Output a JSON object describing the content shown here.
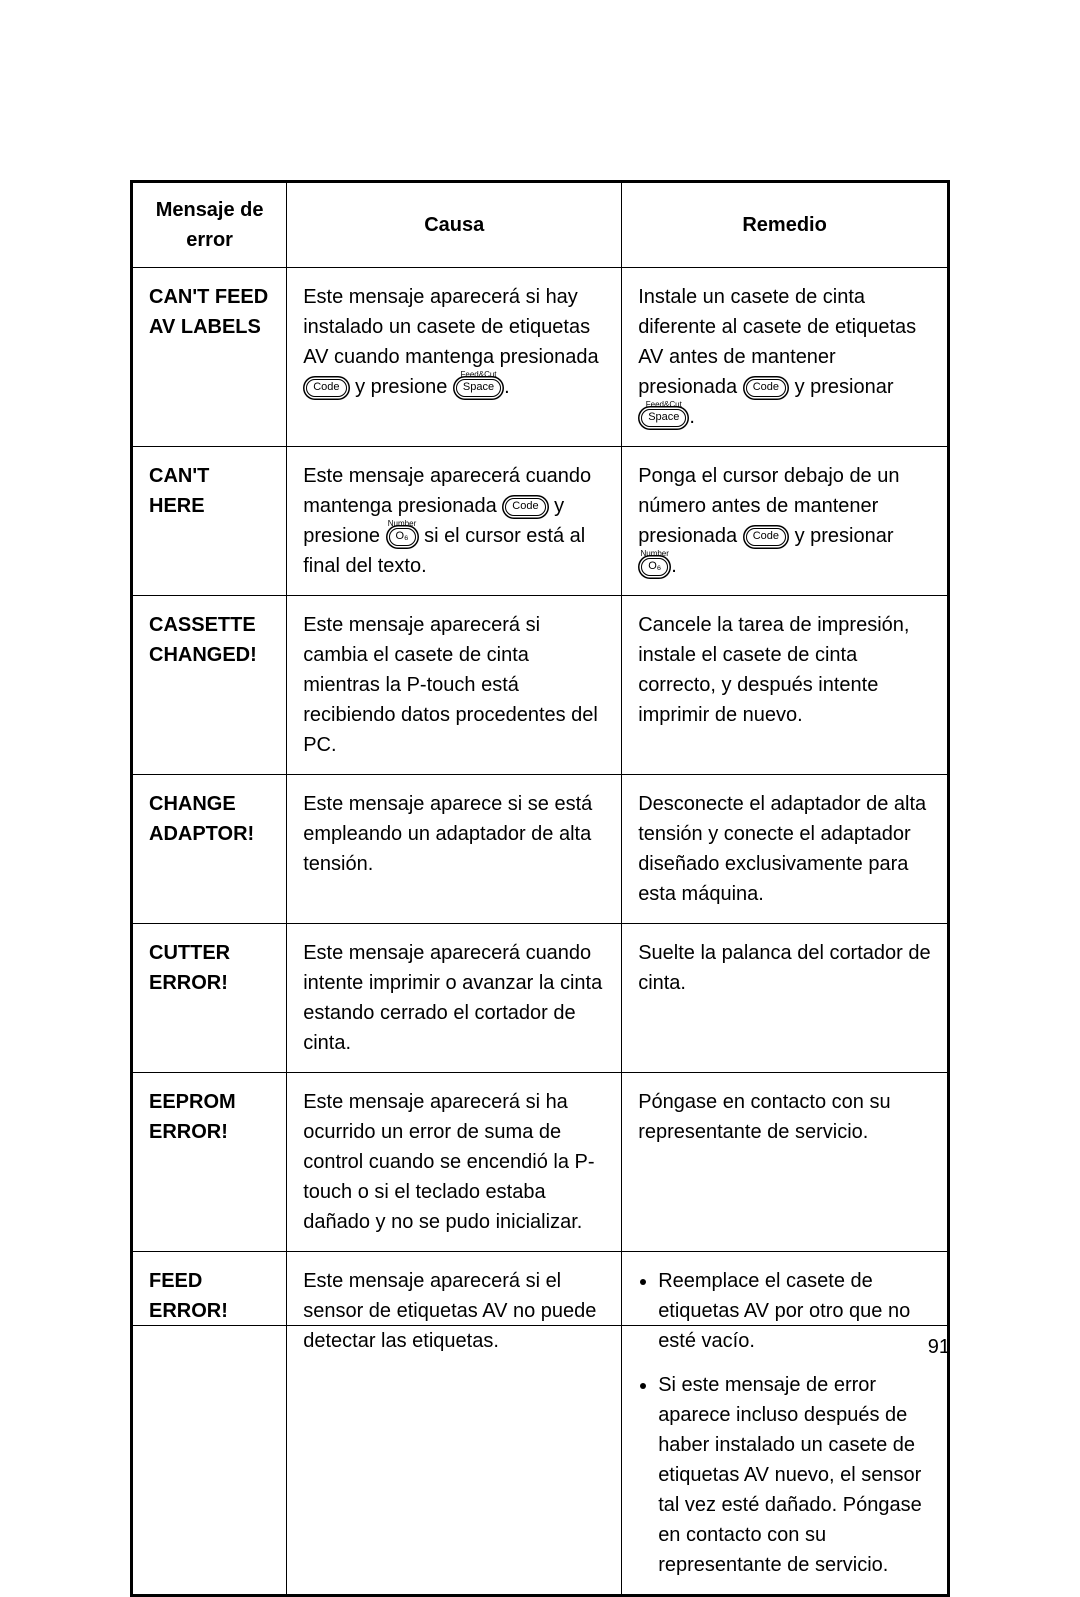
{
  "page_number": "91",
  "table": {
    "headers": {
      "error": "Mensaje de error",
      "cause": "Causa",
      "remedy": "Remedio"
    },
    "rows": [
      {
        "error": "CAN'T FEED AV LABELS",
        "cause_pre": "Este mensaje aparecerá si hay instalado un casete de etiquetas AV cuando mantenga presionada ",
        "cause_key1": "Code",
        "cause_mid": " y presione ",
        "cause_key2": "Space",
        "cause_key2_sup": "Feed&Cut",
        "cause_post": ".",
        "remedy_pre": "Instale un casete de cinta diferente al casete de etiquetas AV antes de mantener presionada ",
        "remedy_key1": "Code",
        "remedy_mid": " y presionar ",
        "remedy_key2": "Space",
        "remedy_key2_sup": "Feed&Cut",
        "remedy_post": "."
      },
      {
        "error": "CAN'T HERE",
        "cause_pre": "Este mensaje aparecerá cuando mantenga presionada ",
        "cause_key1": "Code",
        "cause_mid": " y presione ",
        "cause_key2": "O₆",
        "cause_key2_sup": "Number",
        "cause_post": " si el cursor está al final del texto.",
        "remedy_pre": "Ponga el cursor debajo de un número antes de mantener presionada ",
        "remedy_key1": "Code",
        "remedy_mid": " y presionar ",
        "remedy_key2": "O₆",
        "remedy_key2_sup": "Number",
        "remedy_post": "."
      },
      {
        "error": "CASSETTE CHANGED!",
        "cause": "Este mensaje aparecerá si cambia el casete de cinta mientras la P-touch está recibiendo datos procedentes del PC.",
        "remedy": "Cancele la tarea de impresión, instale el casete de cinta correcto, y después intente imprimir de nuevo."
      },
      {
        "error": "CHANGE ADAPTOR!",
        "cause": "Este mensaje aparece si se está empleando un adaptador de alta tensión.",
        "remedy": "Desconecte el adaptador de alta tensión y conecte el adaptador diseñado exclusivamente para esta máquina."
      },
      {
        "error": "CUTTER ERROR!",
        "cause": "Este mensaje aparecerá cuando intente imprimir o avanzar la cinta estando cerrado el cortador de cinta.",
        "remedy": "Suelte la palanca del cortador de cinta."
      },
      {
        "error": "EEPROM ERROR!",
        "cause": "Este mensaje aparecerá si ha ocurrido un error de suma de control cuando se encendió la P-touch o si el teclado estaba dañado y no se pudo inicializar.",
        "remedy": "Póngase en contacto con su representante de servicio."
      },
      {
        "error": "FEED ERROR!",
        "cause": "Este mensaje aparecerá si el sensor de etiquetas AV no puede detectar las etiquetas.",
        "remedy_list": [
          "Reemplace el casete de etiquetas AV por otro que no esté vacío.",
          "Si este mensaje de error aparece incluso después de haber instalado un casete de etiquetas AV nuevo, el sensor tal vez esté dañado. Póngase en contacto con su representante de servicio."
        ]
      }
    ]
  }
}
